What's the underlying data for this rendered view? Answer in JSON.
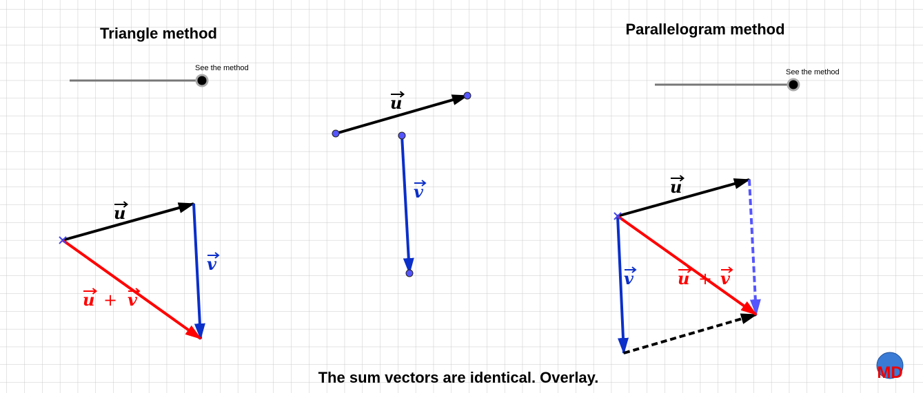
{
  "triangle": {
    "title": "Triangle method",
    "slider_label": "See the method",
    "labels": {
      "u": "u",
      "v": "v",
      "sum_u": "u",
      "plus": "+",
      "sum_v": "v"
    }
  },
  "vectors": {
    "labels": {
      "u": "u",
      "v": "v"
    }
  },
  "parallelogram": {
    "title": "Parallelogram method",
    "slider_label": "See the method",
    "labels": {
      "u": "u",
      "v": "v",
      "sum_u": "u",
      "plus": "+",
      "sum_v": "v"
    }
  },
  "caption": "The sum vectors are identical. Overlay.",
  "logo": "MD"
}
